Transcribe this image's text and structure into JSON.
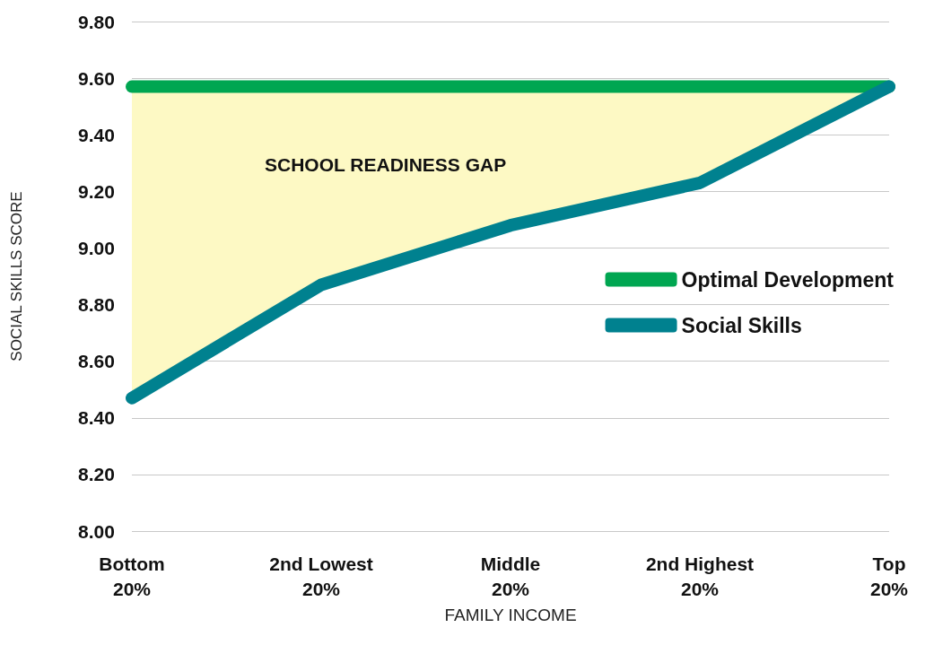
{
  "chart_data": {
    "type": "line",
    "xlabel": "FAMILY INCOME",
    "ylabel": "SOCIAL SKILLS SCORE",
    "categories": [
      "Bottom\n20%",
      "2nd Lowest\n20%",
      "Middle\n20%",
      "2nd Highest\n20%",
      "Top\n20%"
    ],
    "series": [
      {
        "name": "Optimal Development",
        "color": "#00a651",
        "values": [
          9.57,
          9.57,
          9.57,
          9.57,
          9.57
        ],
        "lower": [
          8.47,
          8.87,
          9.08,
          9.23,
          9.57
        ],
        "upper": [
          9.57,
          9.57,
          9.57,
          9.57,
          9.57
        ]
      },
      {
        "name": "Social Skills",
        "color": "#00818f",
        "values": [
          8.47,
          8.87,
          9.08,
          9.23,
          9.57
        ]
      }
    ],
    "ylim": [
      8.0,
      9.8
    ],
    "yticks": [
      {
        "value": 8.0,
        "label": "8.00"
      },
      {
        "value": 8.2,
        "label": "8.20"
      },
      {
        "value": 8.4,
        "label": "8.40"
      },
      {
        "value": 8.6,
        "label": "8.60"
      },
      {
        "value": 8.8,
        "label": "8.80"
      },
      {
        "value": 9.0,
        "label": "9.00"
      },
      {
        "value": 9.2,
        "label": "9.20"
      },
      {
        "value": 9.4,
        "label": "9.40"
      },
      {
        "value": 9.6,
        "label": "9.60"
      },
      {
        "value": 9.8,
        "label": "9.80"
      }
    ],
    "annotations": [
      "SCHOOL READINESS GAP"
    ],
    "grid": "y",
    "legend": "right",
    "line_style": "solid"
  }
}
